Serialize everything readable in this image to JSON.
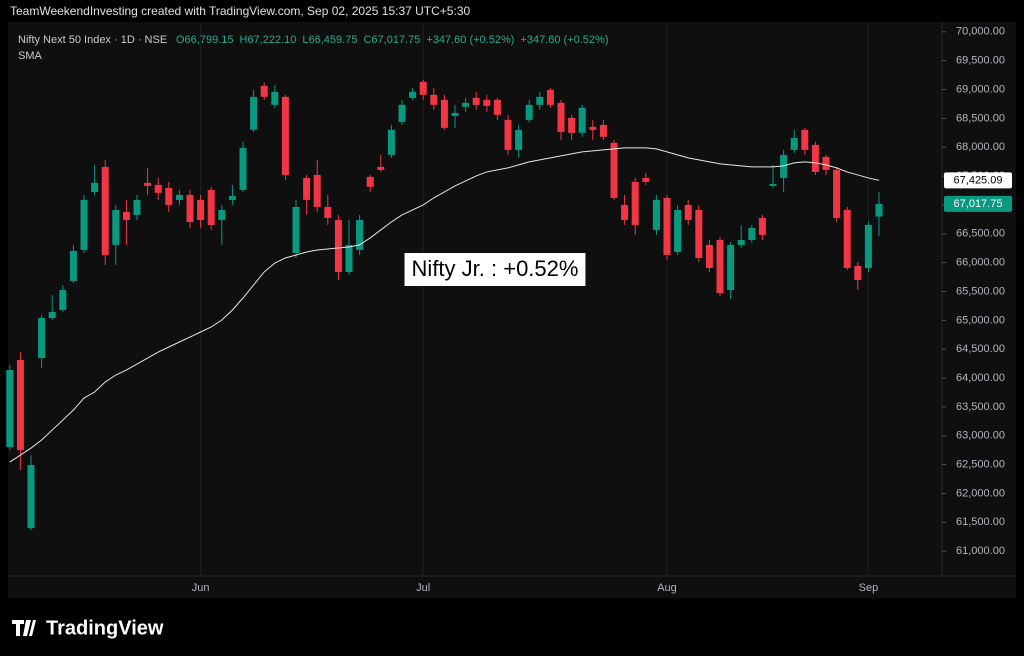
{
  "header": "TeamWeekendInvesting created with TradingView.com, Sep 02, 2025 15:37 UTC+5:30",
  "logo": "TradingView",
  "chart_data": {
    "type": "candlestick",
    "legend": {
      "symbol": "Nifty Next 50 Index · 1D · NSE",
      "ohlc": [
        "O66,799.15",
        "H67,222.10",
        "L66,459.75",
        "C67,017.75",
        "+347.60 (+0.52%)",
        "+347.60 (+0.52%)"
      ]
    },
    "annotation": "Nifty Jr. : +0.52%",
    "up_color": "#089981",
    "down_color": "#f23645",
    "grid": "x",
    "categories": [
      null,
      null,
      null,
      null,
      null,
      null,
      null,
      null,
      null,
      null,
      null,
      null,
      null,
      null,
      null,
      null,
      null,
      null,
      "Jun",
      null,
      null,
      null,
      null,
      null,
      null,
      null,
      null,
      null,
      null,
      null,
      null,
      null,
      null,
      null,
      null,
      null,
      null,
      null,
      null,
      "Jul",
      null,
      null,
      null,
      null,
      null,
      null,
      null,
      null,
      null,
      null,
      null,
      null,
      null,
      null,
      null,
      null,
      null,
      null,
      null,
      null,
      null,
      null,
      "Aug",
      null,
      null,
      null,
      null,
      null,
      null,
      null,
      null,
      null,
      null,
      null,
      null,
      null,
      null,
      null,
      null,
      null,
      null,
      "Sep",
      null
    ],
    "open": [
      62804,
      64313,
      61399,
      64347,
      65041,
      65180,
      65683,
      66220,
      67226,
      67659,
      66307,
      66879,
      66827,
      67382,
      67347,
      67295,
      67087,
      67174,
      67087,
      67260,
      66740,
      67087,
      67260,
      68301,
      69064,
      68734,
      68873,
      66168,
      67468,
      67520,
      66965,
      66740,
      65838,
      66220,
      67486,
      67659,
      67867,
      68439,
      68856,
      69133,
      68908,
      68821,
      68543,
      68699,
      68856,
      68821,
      68821,
      68474,
      67954,
      68474,
      68734,
      68994,
      68769,
      68509,
      68249,
      68353,
      68387,
      68076,
      66999,
      67399,
      67468,
      66567,
      67122,
      66185,
      66999,
      66913,
      66307,
      66393,
      65526,
      66307,
      66393,
      66775,
      67330,
      67468,
      67954,
      68301,
      68041,
      67832,
      67607,
      66913,
      65943,
      65908,
      66799.15
    ],
    "high": [
      64226,
      64451,
      62665,
      65093,
      65440,
      65613,
      66307,
      67174,
      67694,
      67781,
      67000,
      67087,
      67174,
      67642,
      67468,
      67399,
      67260,
      67260,
      67174,
      67313,
      67000,
      67347,
      68093,
      68994,
      69116,
      69081,
      68908,
      67087,
      67520,
      67781,
      67174,
      66827,
      66740,
      66827,
      67520,
      67867,
      68388,
      68821,
      69029,
      69168,
      69029,
      68908,
      68734,
      68856,
      68960,
      68908,
      68856,
      68561,
      68388,
      68821,
      68960,
      69029,
      68821,
      68561,
      68734,
      68474,
      68474,
      68128,
      67174,
      67468,
      67555,
      67174,
      67174,
      67000,
      67087,
      67000,
      66393,
      66445,
      66359,
      66653,
      66653,
      66827,
      67694,
      67954,
      68301,
      68336,
      68093,
      67867,
      67659,
      66965,
      66012,
      66705,
      67222.1
    ],
    "low": [
      62752,
      62405,
      61365,
      64174,
      65006,
      65145,
      65648,
      66168,
      67174,
      65960,
      65960,
      66307,
      66740,
      67174,
      67087,
      66879,
      67000,
      66601,
      66601,
      66567,
      66307,
      67000,
      67226,
      68266,
      68821,
      68682,
      67434,
      66081,
      66827,
      66879,
      66653,
      65700,
      65786,
      66133,
      67226,
      67573,
      67815,
      68388,
      68821,
      68821,
      68647,
      68301,
      68336,
      68613,
      68647,
      68613,
      68474,
      67867,
      67815,
      68422,
      68647,
      68682,
      68128,
      68128,
      68180,
      68128,
      68128,
      67087,
      66653,
      66480,
      67347,
      66480,
      66047,
      66133,
      66653,
      66012,
      65838,
      65422,
      65370,
      66255,
      66341,
      66393,
      67295,
      67226,
      67902,
      67867,
      67520,
      67520,
      66705,
      65873,
      65526,
      65838,
      66459.75
    ],
    "close": [
      64139,
      62752,
      62492,
      65041,
      65145,
      65526,
      66203,
      67087,
      67382,
      66133,
      66913,
      66740,
      67087,
      67330,
      67209,
      67000,
      67174,
      66705,
      66740,
      66653,
      66913,
      67156,
      67989,
      68873,
      68873,
      68960,
      67520,
      66965,
      67087,
      66965,
      66775,
      65838,
      66307,
      66740,
      67313,
      67607,
      68301,
      68734,
      68960,
      68908,
      68734,
      68336,
      68595,
      68769,
      68734,
      68717,
      68561,
      67954,
      68301,
      68734,
      68873,
      68734,
      68266,
      68249,
      68682,
      68301,
      68180,
      67122,
      66740,
      66653,
      67399,
      67087,
      66133,
      66913,
      66740,
      66081,
      65908,
      65474,
      66307,
      66393,
      66601,
      66480,
      67364,
      67867,
      68162,
      67954,
      67572,
      67607,
      66775,
      65908,
      65700,
      66653,
      67017.75
    ],
    "close_label": "67,017.75",
    "sma": {
      "name": "SMA",
      "color": "#e6e6e6",
      "last_label": "67,425.09",
      "values": [
        62544,
        62665,
        62787,
        62926,
        63099,
        63272,
        63446,
        63654,
        63758,
        63931,
        64053,
        64139,
        64243,
        64347,
        64451,
        64538,
        64625,
        64711,
        64798,
        64885,
        65006,
        65180,
        65387,
        65613,
        65838,
        65994,
        66081,
        66133,
        66185,
        66220,
        66237,
        66255,
        66272,
        66307,
        66428,
        66567,
        66706,
        66827,
        66914,
        67000,
        67122,
        67226,
        67330,
        67416,
        67503,
        67572,
        67607,
        67642,
        67694,
        67746,
        67781,
        67815,
        67850,
        67885,
        67919,
        67937,
        67954,
        67972,
        67989,
        67989,
        67989,
        67972,
        67919,
        67867,
        67815,
        67781,
        67746,
        67711,
        67694,
        67677,
        67659,
        67659,
        67659,
        67677,
        67729,
        67746,
        67729,
        67694,
        67642,
        67572,
        67520,
        67468,
        67425.09
      ]
    },
    "ylim": [
      60570,
      70170
    ],
    "yticks": [
      {
        "value": 61000,
        "label": "61,000.00"
      },
      {
        "value": 61500,
        "label": "61,500.00"
      },
      {
        "value": 62000,
        "label": "62,000.00"
      },
      {
        "value": 62500,
        "label": "62,500.00"
      },
      {
        "value": 63000,
        "label": "63,000.00"
      },
      {
        "value": 63500,
        "label": "63,500.00"
      },
      {
        "value": 64000,
        "label": "64,000.00"
      },
      {
        "value": 64500,
        "label": "64,500.00"
      },
      {
        "value": 65000,
        "label": "65,000.00"
      },
      {
        "value": 65500,
        "label": "65,500.00"
      },
      {
        "value": 66000,
        "label": "66,000.00"
      },
      {
        "value": 66500,
        "label": "66,500.00"
      },
      {
        "value": 67000,
        "label": "67,000.00"
      },
      {
        "value": 67500,
        "label": "67,500.00"
      },
      {
        "value": 68000,
        "label": "68,000.00"
      },
      {
        "value": 68500,
        "label": "68,500.00"
      },
      {
        "value": 69000,
        "label": "69,000.00"
      },
      {
        "value": 69500,
        "label": "69,500.00"
      },
      {
        "value": 70000,
        "label": "70,000.00"
      }
    ]
  }
}
